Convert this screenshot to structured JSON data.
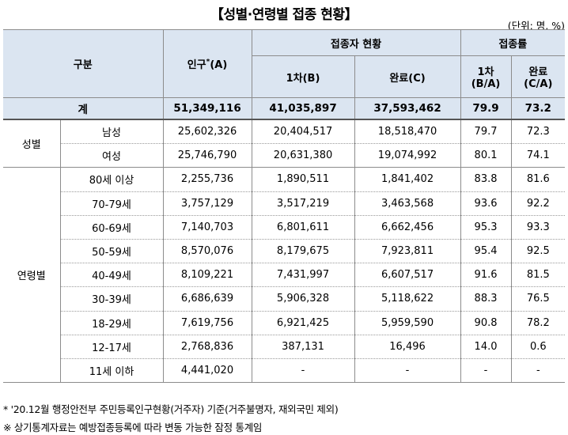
{
  "title": "【성별·연령별 접종 현황】",
  "unit": "(단위: 명, %)",
  "header": {
    "category": "구분",
    "population": "인구",
    "population_mark": "*",
    "population_suffix": "(A)",
    "vacc_status": "접종자 현황",
    "first": "1차(B)",
    "complete": "완료(C)",
    "rate": "접종률",
    "rate_first": "1차",
    "rate_first_sub": "(B/A)",
    "rate_complete": "완료",
    "rate_complete_sub": "(C/A)"
  },
  "total": {
    "label": "계",
    "population": "51,349,116",
    "first": "41,035,897",
    "complete": "37,593,462",
    "rate_first": "79.9",
    "rate_complete": "73.2"
  },
  "sex": {
    "group": "성별",
    "rows": [
      {
        "label": "남성",
        "population": "25,602,326",
        "first": "20,404,517",
        "complete": "18,518,470",
        "rate_first": "79.7",
        "rate_complete": "72.3"
      },
      {
        "label": "여성",
        "population": "25,746,790",
        "first": "20,631,380",
        "complete": "19,074,992",
        "rate_first": "80.1",
        "rate_complete": "74.1"
      }
    ]
  },
  "age": {
    "group": "연령별",
    "rows": [
      {
        "label": "80세 이상",
        "population": "2,255,736",
        "first": "1,890,511",
        "complete": "1,841,402",
        "rate_first": "83.8",
        "rate_complete": "81.6"
      },
      {
        "label": "70-79세",
        "population": "3,757,129",
        "first": "3,517,219",
        "complete": "3,463,568",
        "rate_first": "93.6",
        "rate_complete": "92.2"
      },
      {
        "label": "60-69세",
        "population": "7,140,703",
        "first": "6,801,611",
        "complete": "6,662,456",
        "rate_first": "95.3",
        "rate_complete": "93.3"
      },
      {
        "label": "50-59세",
        "population": "8,570,076",
        "first": "8,179,675",
        "complete": "7,923,811",
        "rate_first": "95.4",
        "rate_complete": "92.5"
      },
      {
        "label": "40-49세",
        "population": "8,109,221",
        "first": "7,431,997",
        "complete": "6,607,517",
        "rate_first": "91.6",
        "rate_complete": "81.5"
      },
      {
        "label": "30-39세",
        "population": "6,686,639",
        "first": "5,906,328",
        "complete": "5,118,622",
        "rate_first": "88.3",
        "rate_complete": "76.5"
      },
      {
        "label": "18-29세",
        "population": "7,619,756",
        "first": "6,921,425",
        "complete": "5,959,590",
        "rate_first": "90.8",
        "rate_complete": "78.2"
      },
      {
        "label": "12-17세",
        "population": "2,768,836",
        "first": "387,131",
        "complete": "16,496",
        "rate_first": "14.0",
        "rate_complete": "0.6"
      },
      {
        "label": "11세 이하",
        "population": "4,441,020",
        "first": "-",
        "complete": "-",
        "rate_first": "-",
        "rate_complete": "-"
      }
    ]
  },
  "notes": [
    "* '20.12월 행정안전부 주민등록인구현황(거주자) 기준(거주불명자, 재외국민 제외)",
    "※ 상기통계자료는 예방접종등록에 따라 변동 가능한 잠정 통계임"
  ]
}
